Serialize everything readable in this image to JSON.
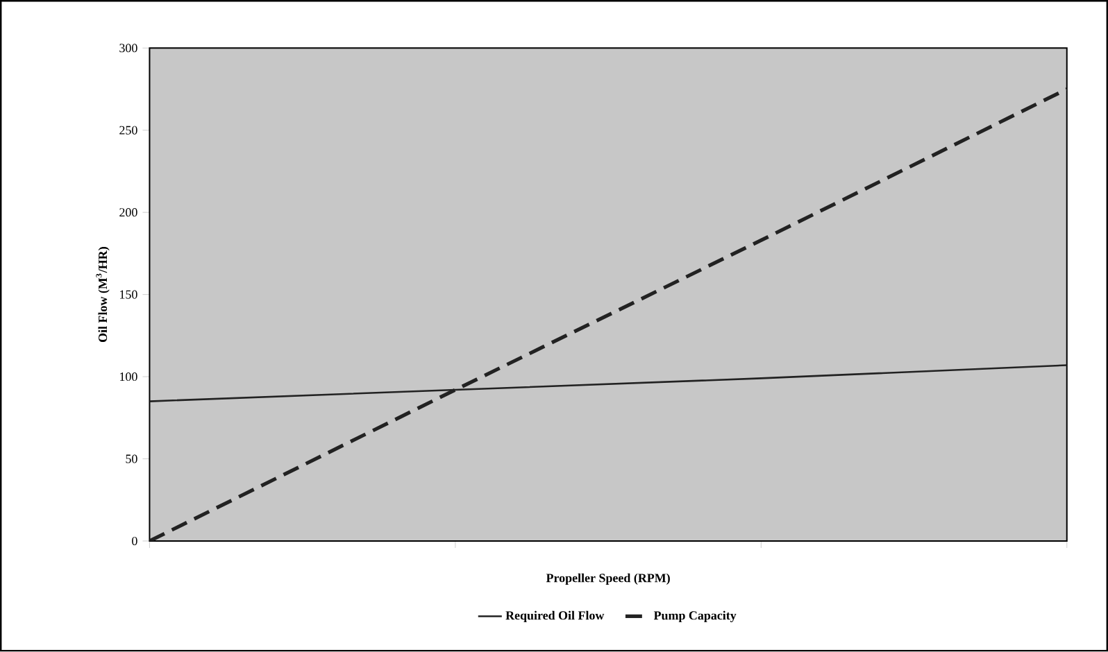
{
  "chart_data": {
    "type": "line",
    "xlabel": "Propeller Speed (RPM)",
    "ylabel": "Oil Flow (M$^{3}$/HR)",
    "categories": [
      null,
      null,
      null,
      null
    ],
    "series": [
      {
        "name": "Required Oil Flow",
        "color": "#222222",
        "line_style": "solid",
        "values": [
          85,
          92,
          99,
          107
        ]
      },
      {
        "name": "Pump Capacity",
        "color": "#222222",
        "line_style": "dashed",
        "values": [
          0,
          92,
          183,
          275
        ]
      }
    ],
    "ylim": [
      0,
      300
    ],
    "yticks": [
      0,
      50,
      100,
      150,
      200,
      250,
      300
    ],
    "grid": false,
    "legend": "bottom",
    "marker": "none",
    "tick_labels": "y"
  }
}
